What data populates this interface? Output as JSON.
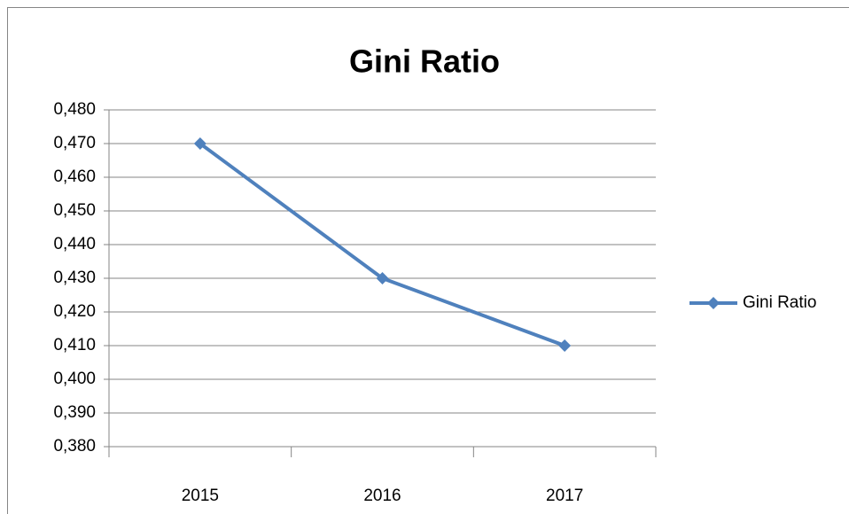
{
  "chart_data": {
    "type": "line",
    "title": "Gini Ratio",
    "categories": [
      "2015",
      "2016",
      "2017"
    ],
    "series": [
      {
        "name": "Gini Ratio",
        "color": "#4f81bd",
        "values": [
          0.47,
          0.43,
          0.41
        ]
      }
    ],
    "ylim": [
      0.38,
      0.48
    ],
    "yticks": [
      {
        "value": 0.38,
        "label": "0,380"
      },
      {
        "value": 0.39,
        "label": "0,390"
      },
      {
        "value": 0.4,
        "label": "0,400"
      },
      {
        "value": 0.41,
        "label": "0,410"
      },
      {
        "value": 0.42,
        "label": "0,420"
      },
      {
        "value": 0.43,
        "label": "0,430"
      },
      {
        "value": 0.44,
        "label": "0,440"
      },
      {
        "value": 0.45,
        "label": "0,450"
      },
      {
        "value": 0.46,
        "label": "0,460"
      },
      {
        "value": 0.47,
        "label": "0,470"
      },
      {
        "value": 0.48,
        "label": "0,480"
      }
    ],
    "grid": true,
    "legend": "right"
  }
}
